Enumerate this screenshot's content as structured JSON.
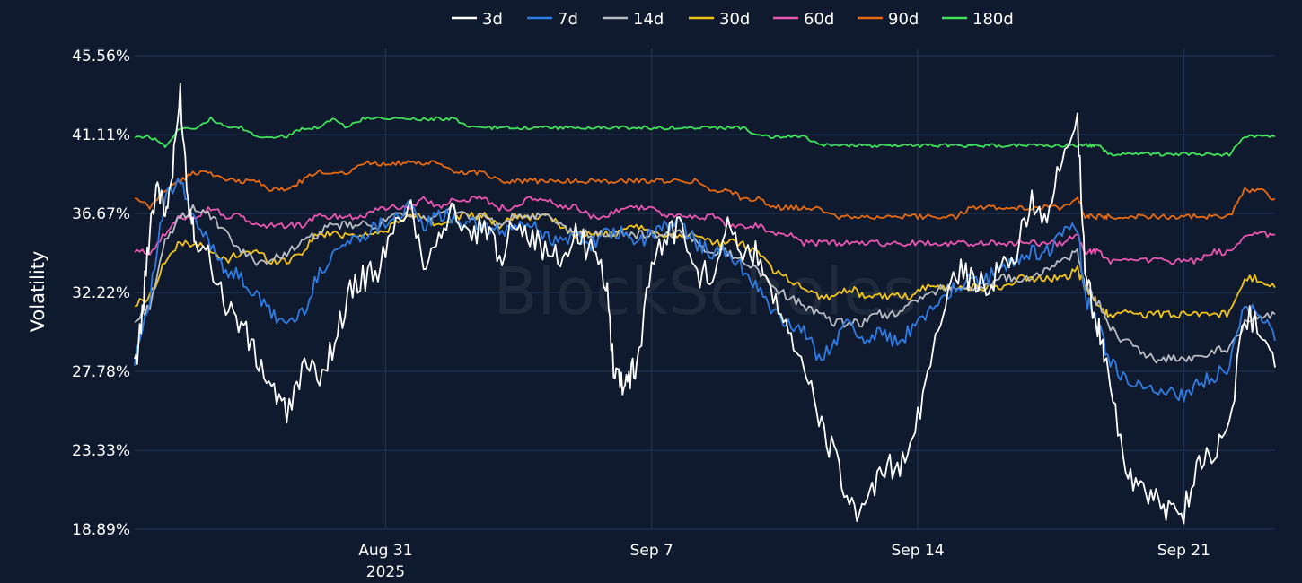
{
  "watermark": "BlockScholes",
  "chart_data": {
    "type": "line",
    "title": "",
    "ylabel": "Volatility",
    "xlabel": "",
    "x_ticks": [
      {
        "x": 5.0,
        "label": "Aug 31",
        "sublabel": "2025"
      },
      {
        "x": 12.0,
        "label": "Sep 7",
        "sublabel": ""
      },
      {
        "x": 19.0,
        "label": "Sep 14",
        "sublabel": ""
      },
      {
        "x": 26.0,
        "label": "Sep 21",
        "sublabel": ""
      }
    ],
    "y_ticks": [
      18.89,
      23.33,
      27.78,
      32.22,
      36.67,
      41.11,
      45.56
    ],
    "y_tick_labels": [
      "18.89%",
      "23.33%",
      "27.78%",
      "32.22%",
      "36.67%",
      "41.11%",
      "45.56%"
    ],
    "xlim": [
      -1.6,
      28.4
    ],
    "ylim": [
      18.89,
      45.56
    ],
    "grid": true,
    "legend_position": "top-center",
    "x_units": "days since Aug 26 2025",
    "series": [
      {
        "name": "3d",
        "color": "#ffffff",
        "x": [
          -1.6,
          -1.4,
          -1.2,
          -1.0,
          -0.8,
          -0.6,
          -0.4,
          -0.2,
          0.0,
          0.4,
          0.8,
          1.2,
          1.6,
          2.0,
          2.4,
          2.8,
          3.2,
          3.6,
          4.0,
          4.4,
          4.8,
          5.2,
          5.6,
          6.0,
          6.4,
          6.8,
          7.2,
          7.6,
          8.0,
          8.4,
          8.8,
          9.2,
          9.6,
          10.0,
          10.4,
          10.8,
          11.0,
          11.2,
          11.4,
          11.6,
          12.0,
          12.4,
          12.8,
          13.2,
          13.6,
          14.0,
          14.4,
          14.8,
          15.2,
          15.6,
          16.0,
          16.4,
          16.8,
          17.2,
          17.6,
          18.0,
          18.4,
          18.8,
          19.2,
          19.6,
          20.0,
          20.4,
          20.8,
          21.2,
          21.6,
          22.0,
          22.4,
          22.8,
          23.2,
          23.4,
          23.6,
          23.8,
          24.0,
          24.4,
          24.8,
          25.2,
          25.6,
          26.0,
          26.4,
          26.8,
          27.2,
          27.6,
          28.0,
          28.4
        ],
        "y": [
          27.8,
          31.0,
          36.0,
          38.5,
          36.5,
          39.0,
          43.5,
          37.5,
          35.5,
          34.0,
          31.5,
          30.5,
          28.5,
          27.0,
          25.2,
          28.0,
          27.5,
          29.0,
          32.0,
          33.0,
          33.5,
          35.5,
          37.5,
          34.0,
          35.5,
          37.0,
          35.0,
          36.0,
          34.0,
          36.5,
          35.5,
          34.5,
          34.0,
          35.5,
          34.5,
          33.0,
          28.0,
          27.2,
          27.5,
          28.0,
          34.0,
          35.5,
          36.0,
          33.0,
          33.5,
          36.5,
          34.0,
          34.5,
          32.0,
          30.5,
          28.0,
          25.0,
          23.0,
          20.5,
          19.5,
          22.0,
          22.5,
          23.0,
          27.0,
          31.0,
          33.5,
          33.0,
          32.5,
          33.5,
          34.5,
          37.5,
          36.5,
          39.5,
          42.0,
          33.5,
          31.5,
          30.0,
          27.5,
          23.0,
          21.0,
          20.5,
          20.0,
          20.0,
          22.5,
          23.5,
          24.5,
          31.0,
          30.5,
          28.0
        ]
      },
      {
        "name": "7d",
        "color": "#2f7ce4",
        "x": [
          -1.6,
          -1.2,
          -0.8,
          -0.4,
          0.0,
          0.4,
          0.8,
          1.2,
          1.6,
          2.0,
          2.4,
          2.8,
          3.2,
          3.6,
          4.0,
          4.4,
          4.8,
          5.2,
          5.6,
          6.0,
          6.4,
          6.8,
          7.2,
          7.6,
          8.0,
          8.4,
          8.8,
          9.2,
          9.6,
          10.0,
          10.4,
          10.8,
          11.2,
          11.6,
          12.0,
          12.4,
          12.8,
          13.2,
          13.6,
          14.0,
          14.4,
          14.8,
          15.2,
          15.6,
          16.0,
          16.4,
          16.8,
          17.2,
          17.6,
          18.0,
          18.4,
          18.8,
          19.2,
          19.6,
          20.0,
          20.4,
          20.8,
          21.2,
          21.6,
          22.0,
          22.4,
          22.8,
          23.2,
          23.4,
          23.6,
          23.8,
          24.0,
          24.4,
          24.8,
          25.2,
          25.6,
          26.0,
          26.4,
          26.8,
          27.2,
          27.6,
          28.0,
          28.4
        ],
        "y": [
          28.5,
          32.0,
          37.5,
          38.5,
          36.0,
          35.0,
          33.5,
          33.0,
          32.0,
          31.0,
          30.5,
          31.0,
          33.0,
          34.5,
          35.0,
          35.5,
          36.0,
          36.5,
          37.0,
          36.0,
          36.5,
          36.5,
          36.0,
          36.0,
          35.5,
          36.0,
          36.0,
          35.5,
          35.0,
          35.5,
          35.0,
          35.5,
          35.5,
          35.0,
          35.5,
          36.0,
          36.0,
          35.0,
          34.5,
          34.5,
          33.5,
          32.5,
          31.0,
          30.5,
          30.0,
          28.5,
          29.5,
          30.5,
          29.5,
          30.0,
          29.5,
          30.0,
          31.0,
          32.0,
          32.5,
          33.0,
          33.0,
          33.5,
          34.0,
          34.5,
          34.5,
          35.5,
          36.0,
          32.0,
          31.0,
          30.0,
          28.5,
          27.5,
          27.0,
          26.5,
          26.5,
          26.5,
          27.0,
          27.5,
          28.0,
          31.5,
          31.0,
          29.5
        ]
      },
      {
        "name": "14d",
        "color": "#b9bcc4",
        "x": [
          -1.6,
          -1.2,
          -0.8,
          -0.4,
          0.0,
          0.4,
          0.8,
          1.2,
          1.6,
          2.0,
          2.4,
          2.8,
          3.2,
          3.6,
          4.0,
          4.4,
          4.8,
          5.2,
          5.6,
          6.0,
          6.4,
          6.8,
          7.2,
          7.6,
          8.0,
          8.4,
          8.8,
          9.2,
          9.6,
          10.0,
          10.4,
          10.8,
          11.2,
          11.6,
          12.0,
          12.4,
          12.8,
          13.2,
          13.6,
          14.0,
          14.4,
          14.8,
          15.2,
          15.6,
          16.0,
          16.4,
          16.8,
          17.2,
          17.6,
          18.0,
          18.4,
          18.8,
          19.2,
          19.6,
          20.0,
          20.4,
          20.8,
          21.2,
          21.6,
          22.0,
          22.4,
          22.8,
          23.2,
          23.4,
          23.6,
          23.8,
          24.0,
          24.4,
          24.8,
          25.2,
          25.6,
          26.0,
          26.4,
          26.8,
          27.2,
          27.6,
          28.0,
          28.4
        ],
        "y": [
          30.5,
          31.5,
          35.0,
          36.5,
          37.0,
          36.5,
          35.5,
          34.5,
          34.0,
          34.0,
          34.5,
          35.0,
          35.5,
          36.0,
          36.0,
          36.0,
          36.0,
          36.5,
          36.5,
          36.5,
          36.5,
          37.0,
          36.5,
          36.5,
          36.0,
          36.5,
          36.5,
          36.5,
          36.0,
          35.5,
          35.5,
          35.5,
          35.5,
          35.5,
          35.5,
          35.5,
          35.5,
          35.0,
          34.5,
          34.5,
          34.0,
          33.5,
          32.5,
          32.0,
          31.5,
          31.0,
          30.5,
          30.5,
          30.5,
          31.0,
          31.0,
          31.5,
          32.0,
          32.5,
          32.5,
          32.5,
          32.5,
          33.0,
          33.0,
          33.0,
          33.5,
          34.0,
          34.5,
          32.5,
          32.0,
          31.5,
          30.5,
          29.5,
          29.0,
          28.5,
          28.5,
          28.5,
          28.5,
          29.0,
          29.0,
          30.5,
          31.0,
          31.0
        ]
      },
      {
        "name": "30d",
        "color": "#f2c418",
        "x": [
          -1.6,
          -1.2,
          -0.8,
          -0.4,
          0.0,
          0.4,
          0.8,
          1.2,
          1.6,
          2.0,
          2.4,
          2.8,
          3.2,
          3.6,
          4.0,
          4.4,
          4.8,
          5.2,
          5.6,
          6.0,
          6.4,
          6.8,
          7.2,
          7.6,
          8.0,
          8.4,
          8.8,
          9.2,
          9.6,
          10.0,
          10.4,
          10.8,
          11.2,
          11.6,
          12.0,
          12.4,
          12.8,
          13.2,
          13.6,
          14.0,
          14.4,
          14.8,
          15.2,
          15.6,
          16.0,
          16.4,
          16.8,
          17.2,
          17.6,
          18.0,
          18.4,
          18.8,
          19.2,
          19.6,
          20.0,
          20.4,
          20.8,
          21.2,
          21.6,
          22.0,
          22.4,
          22.8,
          23.2,
          23.4,
          23.6,
          23.8,
          24.0,
          24.4,
          24.8,
          25.2,
          25.6,
          26.0,
          26.4,
          26.8,
          27.2,
          27.6,
          28.0,
          28.4
        ],
        "y": [
          31.5,
          32.0,
          34.0,
          35.0,
          35.0,
          34.5,
          34.0,
          34.5,
          34.5,
          34.0,
          34.0,
          34.5,
          35.5,
          35.5,
          35.5,
          35.5,
          35.5,
          36.0,
          36.5,
          36.5,
          36.0,
          36.5,
          36.5,
          36.5,
          36.0,
          36.5,
          36.5,
          36.5,
          36.0,
          35.5,
          35.5,
          35.5,
          35.5,
          36.0,
          35.5,
          35.5,
          35.5,
          35.5,
          35.0,
          35.0,
          35.0,
          34.5,
          33.5,
          33.0,
          32.5,
          32.0,
          32.0,
          32.5,
          32.0,
          32.0,
          32.0,
          32.0,
          32.5,
          32.5,
          32.5,
          32.5,
          32.5,
          32.5,
          33.0,
          33.0,
          33.0,
          33.0,
          33.5,
          32.5,
          32.0,
          31.5,
          31.0,
          31.0,
          31.0,
          31.0,
          31.0,
          31.0,
          31.0,
          31.0,
          31.0,
          33.0,
          33.0,
          32.5
        ]
      },
      {
        "name": "60d",
        "color": "#ea56b0",
        "x": [
          -1.6,
          -1.2,
          -0.8,
          -0.4,
          0.0,
          0.4,
          0.8,
          1.2,
          1.6,
          2.0,
          2.4,
          2.8,
          3.2,
          3.6,
          4.0,
          4.4,
          4.8,
          5.2,
          5.6,
          6.0,
          6.4,
          6.8,
          7.2,
          7.6,
          8.0,
          8.4,
          8.8,
          9.2,
          9.6,
          10.0,
          10.4,
          10.8,
          11.2,
          11.6,
          12.0,
          12.4,
          12.8,
          13.2,
          13.6,
          14.0,
          14.4,
          14.8,
          15.2,
          15.6,
          16.0,
          16.4,
          16.8,
          17.2,
          17.6,
          18.0,
          18.4,
          18.8,
          19.2,
          19.6,
          20.0,
          20.4,
          20.8,
          21.2,
          21.6,
          22.0,
          22.4,
          22.8,
          23.2,
          23.4,
          23.6,
          23.8,
          24.0,
          24.4,
          24.8,
          25.2,
          25.6,
          26.0,
          26.4,
          26.8,
          27.2,
          27.6,
          28.0,
          28.4
        ],
        "y": [
          34.5,
          34.5,
          35.5,
          36.5,
          36.5,
          37.0,
          36.5,
          36.5,
          36.0,
          36.0,
          36.0,
          36.0,
          36.5,
          36.5,
          36.5,
          36.5,
          37.0,
          37.0,
          37.0,
          37.5,
          37.0,
          37.5,
          37.5,
          37.5,
          37.0,
          37.0,
          37.5,
          37.5,
          37.0,
          37.0,
          36.5,
          36.5,
          37.0,
          37.0,
          37.0,
          36.5,
          36.5,
          36.5,
          36.5,
          36.0,
          36.0,
          36.0,
          35.5,
          35.5,
          35.0,
          35.0,
          35.0,
          35.0,
          35.0,
          35.0,
          35.0,
          35.0,
          35.0,
          35.0,
          35.0,
          35.0,
          35.0,
          35.0,
          35.0,
          35.0,
          35.0,
          35.0,
          35.5,
          34.5,
          34.5,
          34.5,
          34.0,
          34.0,
          34.0,
          34.0,
          34.0,
          34.0,
          34.0,
          34.5,
          34.5,
          35.5,
          35.5,
          35.5
        ]
      },
      {
        "name": "90d",
        "color": "#e66a12",
        "x": [
          -1.6,
          -1.2,
          -0.8,
          -0.4,
          0.0,
          0.4,
          0.8,
          1.2,
          1.6,
          2.0,
          2.4,
          2.8,
          3.2,
          3.6,
          4.0,
          4.4,
          4.8,
          5.2,
          5.6,
          6.0,
          6.4,
          6.8,
          7.2,
          7.6,
          8.0,
          8.4,
          8.8,
          9.2,
          9.6,
          10.0,
          10.4,
          10.8,
          11.2,
          11.6,
          12.0,
          12.4,
          12.8,
          13.2,
          13.6,
          14.0,
          14.4,
          14.8,
          15.2,
          15.6,
          16.0,
          16.4,
          16.8,
          17.2,
          17.6,
          18.0,
          18.4,
          18.8,
          19.2,
          19.6,
          20.0,
          20.4,
          20.8,
          21.2,
          21.6,
          22.0,
          22.4,
          22.8,
          23.2,
          23.4,
          23.6,
          23.8,
          24.0,
          24.4,
          24.8,
          25.2,
          25.6,
          26.0,
          26.4,
          26.8,
          27.2,
          27.6,
          28.0,
          28.4
        ],
        "y": [
          37.5,
          37.0,
          38.0,
          38.5,
          39.0,
          39.0,
          38.5,
          38.5,
          38.5,
          38.0,
          38.0,
          38.5,
          39.0,
          39.0,
          39.0,
          39.5,
          39.5,
          39.5,
          39.5,
          39.5,
          39.5,
          39.0,
          39.0,
          39.0,
          38.5,
          38.5,
          38.5,
          38.5,
          38.5,
          38.5,
          38.5,
          38.5,
          38.5,
          38.5,
          38.5,
          38.5,
          38.5,
          38.5,
          38.0,
          38.0,
          37.5,
          37.5,
          37.0,
          37.0,
          37.0,
          37.0,
          36.5,
          36.5,
          36.5,
          36.5,
          36.5,
          36.5,
          36.5,
          36.5,
          36.5,
          37.0,
          37.0,
          37.0,
          37.0,
          37.0,
          37.0,
          37.0,
          37.5,
          36.5,
          36.5,
          36.5,
          36.5,
          36.5,
          36.5,
          36.5,
          36.5,
          36.5,
          36.5,
          36.5,
          36.5,
          38.0,
          38.0,
          37.5
        ]
      },
      {
        "name": "180d",
        "color": "#3fe35a",
        "x": [
          -1.6,
          -1.2,
          -0.8,
          -0.4,
          0.0,
          0.4,
          0.8,
          1.2,
          1.6,
          2.0,
          2.4,
          2.8,
          3.2,
          3.6,
          4.0,
          4.4,
          4.8,
          5.2,
          5.6,
          6.0,
          6.4,
          6.8,
          7.2,
          7.6,
          8.0,
          8.4,
          8.8,
          9.2,
          9.6,
          10.0,
          10.4,
          10.8,
          11.2,
          11.6,
          12.0,
          12.4,
          12.8,
          13.2,
          13.6,
          14.0,
          14.4,
          14.8,
          15.2,
          15.6,
          16.0,
          16.4,
          16.8,
          17.2,
          17.6,
          18.0,
          18.4,
          18.8,
          19.2,
          19.6,
          20.0,
          20.4,
          20.8,
          21.2,
          21.6,
          22.0,
          22.4,
          22.8,
          23.2,
          23.4,
          23.6,
          23.8,
          24.0,
          24.4,
          24.8,
          25.2,
          25.6,
          26.0,
          26.4,
          26.8,
          27.2,
          27.6,
          28.0,
          28.4
        ],
        "y": [
          41.0,
          41.0,
          40.5,
          41.5,
          41.5,
          42.0,
          41.5,
          41.5,
          41.0,
          41.0,
          41.0,
          41.5,
          41.5,
          42.0,
          41.5,
          42.0,
          42.0,
          42.0,
          42.0,
          42.0,
          42.0,
          42.0,
          41.5,
          41.5,
          41.5,
          41.5,
          41.5,
          41.5,
          41.5,
          41.5,
          41.5,
          41.5,
          41.5,
          41.5,
          41.5,
          41.5,
          41.5,
          41.5,
          41.5,
          41.5,
          41.5,
          41.0,
          41.0,
          41.0,
          41.0,
          40.5,
          40.5,
          40.5,
          40.5,
          40.5,
          40.5,
          40.5,
          40.5,
          40.5,
          40.5,
          40.5,
          40.5,
          40.5,
          40.5,
          40.5,
          40.5,
          40.5,
          40.5,
          40.5,
          40.5,
          40.5,
          40.0,
          40.0,
          40.0,
          40.0,
          40.0,
          40.0,
          40.0,
          40.0,
          40.0,
          41.0,
          41.0,
          41.0
        ]
      }
    ]
  }
}
